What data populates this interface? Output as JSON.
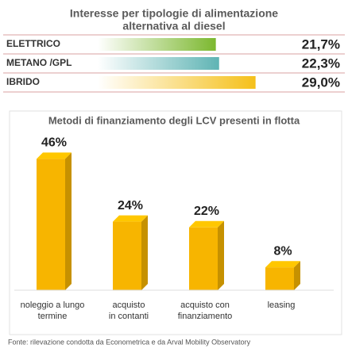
{
  "chart_data": [
    {
      "type": "bar",
      "orientation": "horizontal",
      "title": [
        "Interesse per tipologie di alimentazione",
        "alternativa al diesel"
      ],
      "categories": [
        "ELETTRICO",
        "METANO /GPL",
        "IBRIDO"
      ],
      "values": [
        21.7,
        22.3,
        29.0
      ],
      "value_labels": [
        "21,7%",
        "22,3%",
        "29,0%"
      ],
      "colors": [
        "#7cb82f",
        "#5fb4b4",
        "#f5c01a"
      ]
    },
    {
      "type": "bar",
      "orientation": "vertical",
      "title": "Metodi di finanziamento degli LCV presenti in flotta",
      "categories": [
        [
          "noleggio a lungo",
          "termine"
        ],
        [
          "acquisto",
          "in contanti"
        ],
        [
          "acquisto con",
          "finanziamento"
        ],
        [
          "leasing"
        ]
      ],
      "values": [
        46,
        24,
        22,
        8
      ],
      "value_labels": [
        "46%",
        "24%",
        "22%",
        "8%"
      ],
      "color": "#f7b500"
    }
  ],
  "source": "Fonte: rilevazione condotta da Econometrica e da Arval Mobility Observatory"
}
